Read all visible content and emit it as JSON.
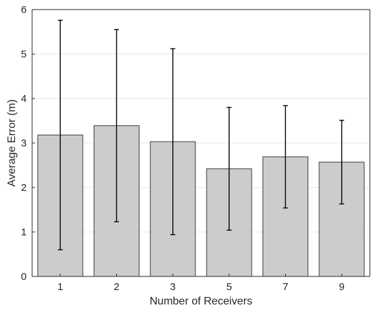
{
  "chart_data": {
    "type": "bar",
    "categories": [
      "1",
      "2",
      "3",
      "5",
      "7",
      "9"
    ],
    "values": [
      3.18,
      3.39,
      3.03,
      2.42,
      2.69,
      2.57
    ],
    "error_low": [
      0.6,
      1.23,
      0.94,
      1.04,
      1.54,
      1.63
    ],
    "error_high": [
      5.76,
      5.55,
      5.12,
      3.8,
      3.84,
      3.51
    ],
    "xlabel": "Number of Receivers",
    "ylabel": "Average Error (m)",
    "ylim": [
      0,
      6
    ],
    "yticks": [
      "0",
      "1",
      "2",
      "3",
      "4",
      "5",
      "6"
    ],
    "grid": "horizontal",
    "colors": {
      "bar_fill": "#cccccc",
      "bar_stroke": "#3a3a3a",
      "error_bar": "#000000",
      "grid": "#e6e6e6",
      "axis": "#262626"
    }
  }
}
